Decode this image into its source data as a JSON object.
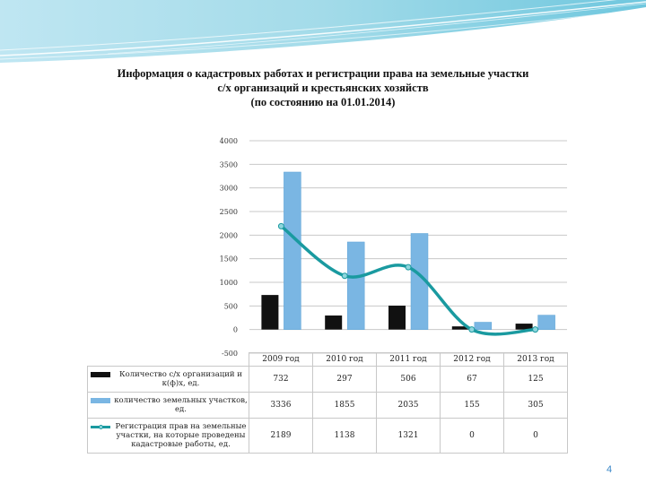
{
  "colors": {
    "bar1": "#111111",
    "bar2": "#7ab6e3",
    "line": "#1a9aa0",
    "grid": "#c8c8c8",
    "accent": "#3a87c8"
  },
  "title_lines": [
    "Информация о кадастровых работах и регистрации права на земельные участки",
    "с/х организаций и крестьянских хозяйств",
    "(по состоянию на 01.01.2014)"
  ],
  "page_number": "4",
  "chart_data": {
    "type": "bar",
    "categories": [
      "2009 год",
      "2010 год",
      "2011 год",
      "2012 год",
      "2013 год"
    ],
    "ylim": [
      -500,
      4000
    ],
    "yticks": [
      4000,
      3500,
      3000,
      2500,
      2000,
      1500,
      1000,
      500,
      0,
      -500
    ],
    "ytick_labels": [
      "4000",
      "3500",
      "3000",
      "2500",
      "2000",
      "1500",
      "1000",
      "500",
      "0",
      "-500"
    ],
    "grid": true,
    "series": [
      {
        "name": "Количество с/х организаций и к(ф)х, ед.",
        "type": "bar",
        "color": "#111111",
        "values": [
          732,
          297,
          506,
          67,
          125
        ],
        "labels": [
          "732",
          "297",
          "506",
          "67",
          "125"
        ]
      },
      {
        "name": "количество земельных участков, ед.",
        "type": "bar",
        "color": "#7ab6e3",
        "values": [
          3336,
          1855,
          2035,
          155,
          305
        ],
        "labels": [
          "3336",
          "1855",
          "2035",
          "155",
          "305"
        ]
      },
      {
        "name": "Регистрация прав на земельные участки, на которые проведены кадастровые работы, ед.",
        "type": "line",
        "color": "#1a9aa0",
        "values": [
          2189,
          1138,
          1321,
          0,
          0
        ],
        "labels": [
          "2189",
          "1138",
          "1321",
          "0",
          "0"
        ]
      }
    ]
  }
}
